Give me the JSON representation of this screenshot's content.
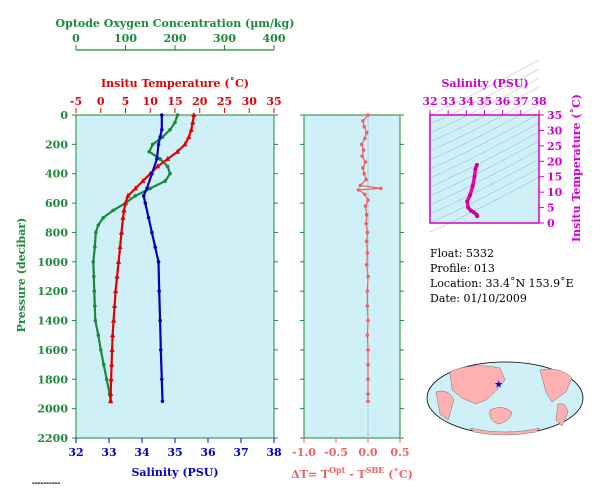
{
  "chart_data": [
    {
      "type": "line",
      "title": "",
      "ylabel": "Pressure (decibar)",
      "ylim": [
        2200,
        0
      ],
      "yticks": [
        0,
        200,
        400,
        600,
        800,
        1000,
        1200,
        1400,
        1600,
        1800,
        2000,
        2200
      ],
      "axes": {
        "oxygen": {
          "label": "Optode Oxygen Concentration (µm/kg)",
          "range": [
            0,
            400
          ],
          "ticks": [
            0,
            100,
            200,
            300,
            400
          ],
          "color": "#1a8a3a"
        },
        "temperature": {
          "label": "Insitu Temperature (˚C)",
          "range": [
            -5,
            35
          ],
          "ticks": [
            -5,
            0,
            5,
            10,
            15,
            20,
            25,
            30,
            35
          ],
          "color": "#e00000"
        },
        "salinity": {
          "label": "Salinity (PSU)",
          "range": [
            32,
            38
          ],
          "ticks": [
            32,
            33,
            34,
            35,
            36,
            37,
            38
          ],
          "color": "#0000c0"
        }
      },
      "series": [
        {
          "axis": "oxygen",
          "color": "#1a8a3a",
          "points": [
            [
              205,
              0
            ],
            [
              200,
              50
            ],
            [
              190,
              100
            ],
            [
              175,
              150
            ],
            [
              155,
              200
            ],
            [
              148,
              250
            ],
            [
              170,
              300
            ],
            [
              185,
              350
            ],
            [
              190,
              400
            ],
            [
              180,
              450
            ],
            [
              150,
              500
            ],
            [
              120,
              550
            ],
            [
              100,
              600
            ],
            [
              75,
              650
            ],
            [
              55,
              700
            ],
            [
              45,
              750
            ],
            [
              40,
              800
            ],
            [
              38,
              900
            ],
            [
              35,
              1000
            ],
            [
              36,
              1100
            ],
            [
              37,
              1200
            ],
            [
              38,
              1300
            ],
            [
              39,
              1400
            ],
            [
              45,
              1500
            ],
            [
              50,
              1600
            ],
            [
              56,
              1700
            ],
            [
              62,
              1800
            ],
            [
              68,
              1900
            ],
            [
              70,
              1950
            ]
          ]
        },
        {
          "axis": "temperature",
          "color": "#e00000",
          "points": [
            [
              18.8,
              0
            ],
            [
              18.6,
              50
            ],
            [
              18.3,
              100
            ],
            [
              17.8,
              150
            ],
            [
              17.0,
              200
            ],
            [
              15.5,
              250
            ],
            [
              13.5,
              300
            ],
            [
              11.5,
              350
            ],
            [
              10.0,
              400
            ],
            [
              8.5,
              450
            ],
            [
              7.0,
              500
            ],
            [
              5.5,
              550
            ],
            [
              5.0,
              600
            ],
            [
              4.7,
              650
            ],
            [
              4.5,
              700
            ],
            [
              4.2,
              800
            ],
            [
              3.9,
              900
            ],
            [
              3.6,
              1000
            ],
            [
              3.3,
              1100
            ],
            [
              3.0,
              1200
            ],
            [
              2.8,
              1300
            ],
            [
              2.6,
              1400
            ],
            [
              2.4,
              1500
            ],
            [
              2.3,
              1600
            ],
            [
              2.2,
              1700
            ],
            [
              2.1,
              1800
            ],
            [
              2.0,
              1900
            ],
            [
              2.0,
              1950
            ]
          ]
        },
        {
          "axis": "salinity",
          "color": "#0000c0",
          "points": [
            [
              34.6,
              0
            ],
            [
              34.6,
              100
            ],
            [
              34.55,
              150
            ],
            [
              34.5,
              200
            ],
            [
              34.45,
              300
            ],
            [
              34.3,
              400
            ],
            [
              34.15,
              500
            ],
            [
              34.05,
              550
            ],
            [
              34.1,
              600
            ],
            [
              34.2,
              700
            ],
            [
              34.3,
              800
            ],
            [
              34.4,
              900
            ],
            [
              34.5,
              1000
            ],
            [
              34.52,
              1200
            ],
            [
              34.55,
              1400
            ],
            [
              34.57,
              1600
            ],
            [
              34.6,
              1800
            ],
            [
              34.62,
              1950
            ]
          ]
        }
      ]
    },
    {
      "type": "scatter",
      "xlabel_main": "ΔT= T",
      "xlabel_sup1": "Opt",
      "xlabel_mid": " - T",
      "xlabel_sup2": "SBE",
      "xlabel_end": " (˚C)",
      "xlim": [
        -1.0,
        0.5
      ],
      "xticks": [
        "-1.0",
        "-0.5",
        "0.0",
        "0.5"
      ],
      "color": "#f06060",
      "points": [
        [
          0.0,
          0
        ],
        [
          -0.08,
          40
        ],
        [
          -0.06,
          80
        ],
        [
          -0.02,
          120
        ],
        [
          -0.05,
          160
        ],
        [
          -0.1,
          200
        ],
        [
          -0.07,
          240
        ],
        [
          -0.09,
          280
        ],
        [
          -0.04,
          320
        ],
        [
          -0.08,
          360
        ],
        [
          -0.06,
          400
        ],
        [
          -0.03,
          440
        ],
        [
          -0.12,
          480
        ],
        [
          0.2,
          500
        ],
        [
          -0.15,
          510
        ],
        [
          -0.05,
          540
        ],
        [
          0.0,
          580
        ],
        [
          -0.04,
          620
        ],
        [
          -0.02,
          680
        ],
        [
          -0.03,
          740
        ],
        [
          -0.01,
          800
        ],
        [
          -0.02,
          860
        ],
        [
          -0.01,
          940
        ],
        [
          -0.02,
          1020
        ],
        [
          0.0,
          1100
        ],
        [
          -0.01,
          1200
        ],
        [
          -0.01,
          1300
        ],
        [
          0.0,
          1400
        ],
        [
          -0.01,
          1500
        ],
        [
          0.0,
          1600
        ],
        [
          0.0,
          1700
        ],
        [
          0.0,
          1800
        ],
        [
          0.0,
          1900
        ],
        [
          0.0,
          1950
        ]
      ]
    },
    {
      "type": "line",
      "xlabel": "Salinity (PSU)",
      "ylabel": "Insitu Temperature (˚C)",
      "xlim": [
        32,
        38
      ],
      "ylim": [
        0,
        35
      ],
      "xticks": [
        32,
        33,
        34,
        35,
        36,
        37,
        38
      ],
      "yticks": [
        0,
        5,
        10,
        15,
        20,
        25,
        30,
        35
      ],
      "color": "#ff00b0",
      "points": [
        [
          34.58,
          18.8
        ],
        [
          34.5,
          17.5
        ],
        [
          34.45,
          15
        ],
        [
          34.35,
          12
        ],
        [
          34.2,
          9
        ],
        [
          34.05,
          7
        ],
        [
          34.1,
          5
        ],
        [
          34.25,
          4
        ],
        [
          34.4,
          3.5
        ],
        [
          34.55,
          2.8
        ],
        [
          34.6,
          2.2
        ]
      ]
    }
  ],
  "info": {
    "float": "Float:  5332",
    "profile": "Profile:  013",
    "location": "Location:  33.4˚N  153.9˚E",
    "date": "Date:  01/10/2009"
  },
  "map": {
    "marker_lat": 33.4,
    "marker_lon": 153.9,
    "land_color": "#ffb0b0",
    "ocean_color": "#d0f0f8"
  },
  "colors": {
    "panel_bg": "#d0f0f8",
    "green": "#1a8a3a",
    "red": "#e00000",
    "blue": "#0000c0",
    "pink": "#f06060",
    "magenta": "#d000d0"
  }
}
